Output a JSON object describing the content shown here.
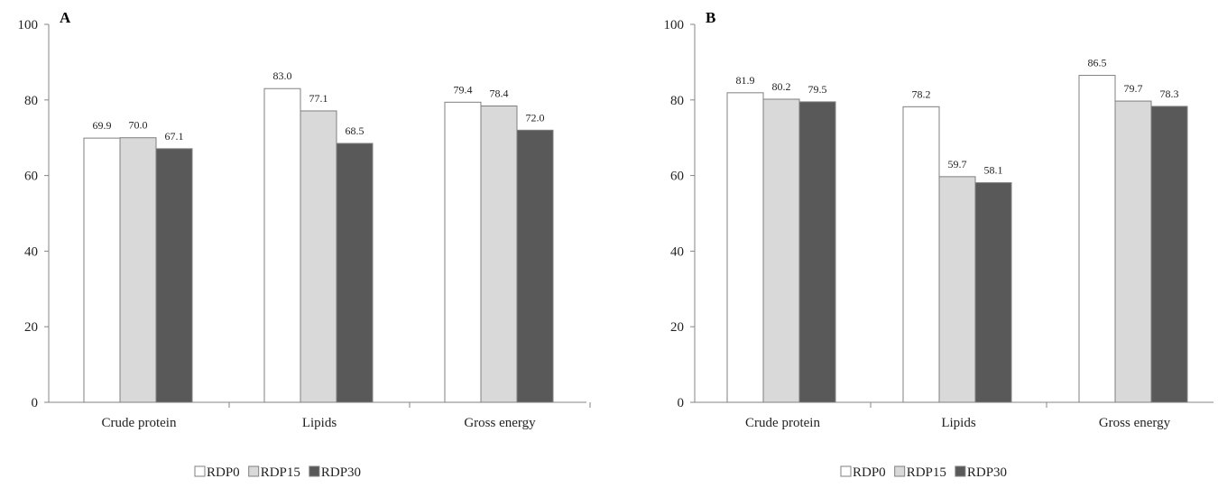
{
  "chart_data": [
    {
      "type": "bar",
      "panel_label": "A",
      "title": "",
      "xlabel": "",
      "ylabel": "",
      "ylim": [
        0,
        100
      ],
      "yticks": [
        0,
        20,
        40,
        60,
        80,
        100
      ],
      "grid": false,
      "legend_position": "bottom",
      "categories": [
        "Crude protein",
        "Lipids",
        "Gross energy"
      ],
      "series": [
        {
          "name": "RDP0",
          "color": "#ffffff",
          "values": [
            69.9,
            83.0,
            79.4
          ],
          "labels": [
            "69.9",
            "83.0",
            "79.4"
          ]
        },
        {
          "name": "RDP15",
          "color": "#d9d9d9",
          "values": [
            70.0,
            77.1,
            78.4
          ],
          "labels": [
            "70.0",
            "77.1",
            "78.4"
          ]
        },
        {
          "name": "RDP30",
          "color": "#595959",
          "values": [
            67.1,
            68.5,
            72.0
          ],
          "labels": [
            "67.1",
            "68.5",
            "72.0"
          ]
        }
      ]
    },
    {
      "type": "bar",
      "panel_label": "B",
      "title": "",
      "xlabel": "",
      "ylabel": "",
      "ylim": [
        0,
        100
      ],
      "yticks": [
        0,
        20,
        40,
        60,
        80,
        100
      ],
      "grid": false,
      "legend_position": "bottom",
      "categories": [
        "Crude protein",
        "Lipids",
        "Gross energy"
      ],
      "series": [
        {
          "name": "RDP0",
          "color": "#ffffff",
          "values": [
            81.9,
            78.2,
            86.5
          ],
          "labels": [
            "81.9",
            "78.2",
            "86.5"
          ]
        },
        {
          "name": "RDP15",
          "color": "#d9d9d9",
          "values": [
            80.2,
            59.7,
            79.7
          ],
          "labels": [
            "80.2",
            "59.7",
            "79.7"
          ]
        },
        {
          "name": "RDP30",
          "color": "#595959",
          "values": [
            79.5,
            58.1,
            78.3
          ],
          "labels": [
            "79.5",
            "58.1",
            "78.3"
          ]
        }
      ]
    }
  ],
  "style": {
    "axis_color": "#868686",
    "bar_stroke": "#7f7f7f",
    "text_color": "#222222"
  }
}
